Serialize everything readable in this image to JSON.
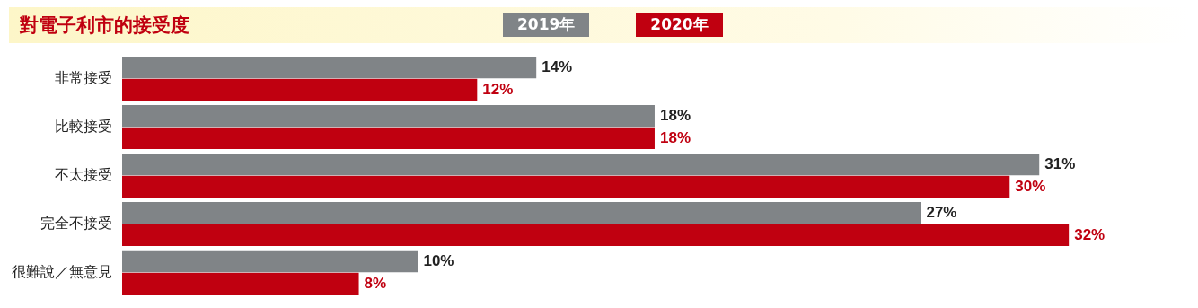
{
  "chart_data": {
    "type": "bar",
    "orientation": "horizontal",
    "title": "對電子利市的接受度",
    "categories": [
      "非常接受",
      "比較接受",
      "不太接受",
      "完全不接受",
      "很難說／無意見"
    ],
    "series": [
      {
        "name": "2019年",
        "color": "#808487",
        "values": [
          14,
          18,
          31,
          27,
          10
        ],
        "value_labels": [
          "14%",
          "18%",
          "31%",
          "27%",
          "10%"
        ]
      },
      {
        "name": "2020年",
        "color": "#c00010",
        "values": [
          12,
          18,
          30,
          32,
          8
        ],
        "value_labels": [
          "12%",
          "18%",
          "30%",
          "32%",
          "8%"
        ]
      }
    ],
    "legend": "top"
  }
}
